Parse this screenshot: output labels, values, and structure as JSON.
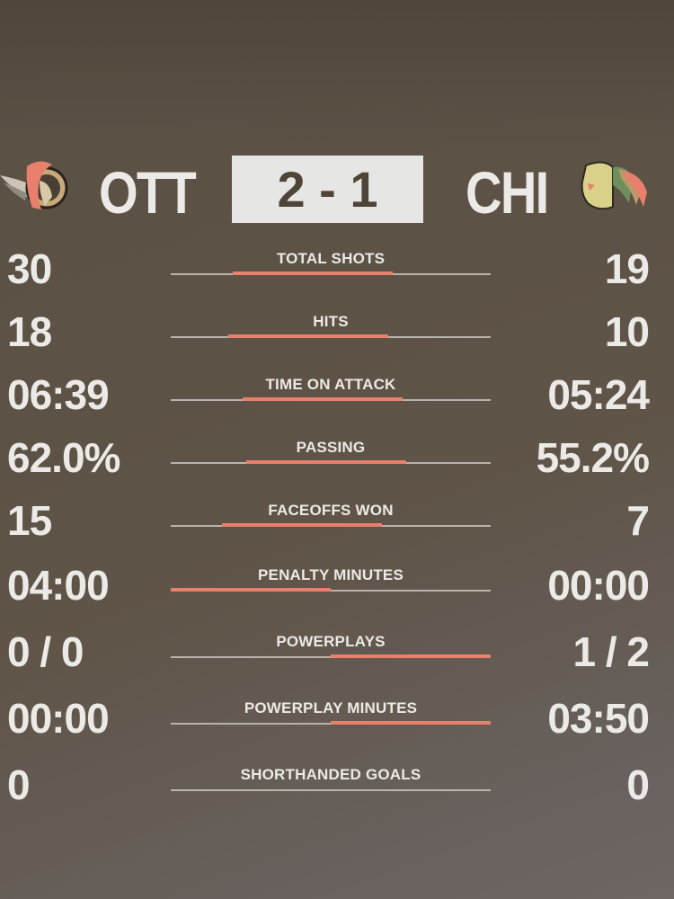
{
  "scoreboard": {
    "home": {
      "abbr": "OTT",
      "logo_icon": "senators-logo",
      "score": 2
    },
    "away": {
      "abbr": "CHI",
      "logo_icon": "blackhawks-logo",
      "score": 1
    },
    "score_text": "2 - 1"
  },
  "colors": {
    "bar": "#e8806c",
    "track": "#b9b4ac",
    "text": "#eceae6",
    "score_box": "#e6e6e4"
  },
  "stats": [
    {
      "label": "TOTAL SHOTS",
      "left": "30",
      "right": "19",
      "left_share": 0.61,
      "right_share": 0.39
    },
    {
      "label": "HITS",
      "left": "18",
      "right": "10",
      "left_share": 0.64,
      "right_share": 0.36
    },
    {
      "label": "TIME ON ATTACK",
      "left": "06:39",
      "right": "05:24",
      "left_share": 0.55,
      "right_share": 0.45
    },
    {
      "label": "PASSING",
      "left": "62.0%",
      "right": "55.2%",
      "left_share": 0.53,
      "right_share": 0.47
    },
    {
      "label": "FACEOFFS WON",
      "left": "15",
      "right": "7",
      "left_share": 0.68,
      "right_share": 0.32
    },
    {
      "label": "PENALTY MINUTES",
      "left": "04:00",
      "right": "00:00",
      "left_share": 1.0,
      "right_share": 0
    },
    {
      "label": "POWERPLAYS",
      "left": "0 / 0",
      "right": "1 / 2",
      "left_share": 0,
      "right_share": 1.0
    },
    {
      "label": "POWERPLAY MINUTES",
      "left": "00:00",
      "right": "03:50",
      "left_share": 0,
      "right_share": 1.0
    },
    {
      "label": "SHORTHANDED GOALS",
      "left": "0",
      "right": "0",
      "left_share": 0,
      "right_share": 0
    }
  ]
}
